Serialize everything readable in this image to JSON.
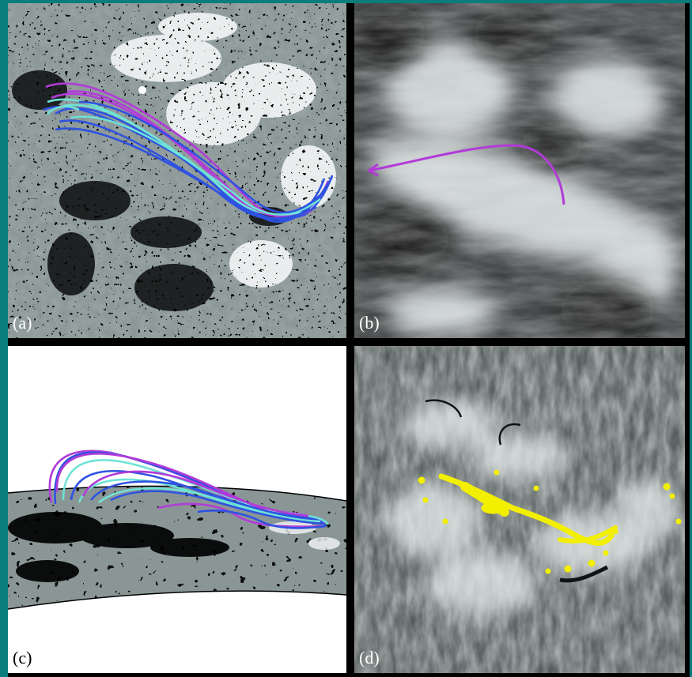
{
  "figure": {
    "panels": [
      {
        "id": "a",
        "label": "(a)"
      },
      {
        "id": "b",
        "label": "(b)"
      },
      {
        "id": "c",
        "label": "(c)"
      },
      {
        "id": "d",
        "label": "(d)"
      }
    ]
  },
  "colors": {
    "outer_background": "#0b7c7c",
    "frame": "#000000",
    "field_line_magenta": "#b23bd8",
    "field_line_blue": "#2f52e0",
    "field_line_cyan": "#6fe3d6",
    "yellow_mask": "#f2f000",
    "magnetogram_gray": "#8a9696"
  },
  "icons": [
    "magnetogram-image",
    "euv-image",
    "halpha-image"
  ]
}
